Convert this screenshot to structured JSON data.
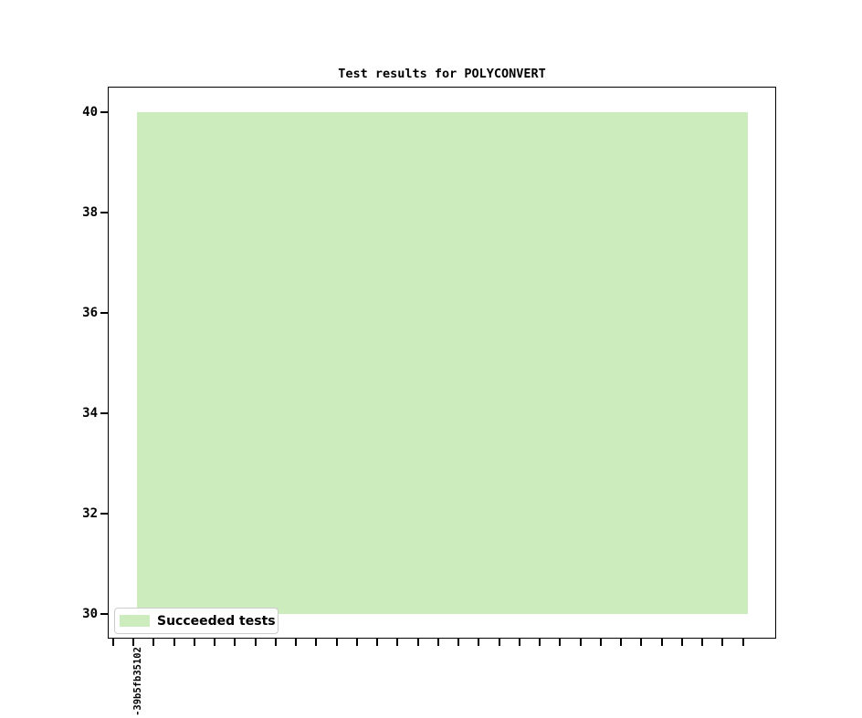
{
  "figure": {
    "title": "Test results for POLYCONVERT"
  },
  "chart_data": {
    "type": "bar",
    "title": "Test results for POLYCONVERT",
    "xlabel": "",
    "ylabel": "",
    "categories": [
      "-39b5fb35102"
    ],
    "x_tick_count": 32,
    "x_tick_labels_visible": [
      "-39b5fb35102"
    ],
    "y_ticks": [
      30,
      32,
      34,
      36,
      38,
      40
    ],
    "ylim": [
      29.5,
      40.5
    ],
    "grid": false,
    "series": [
      {
        "name": "Succeeded tests",
        "color": "#cdecbd",
        "bar_from": 30,
        "bar_to": 40,
        "value": 40
      }
    ],
    "legend": {
      "position": "lower left",
      "entries": [
        "Succeeded tests"
      ]
    }
  },
  "colors": {
    "background": "#ffffff",
    "bar_fill": "#cdecbd",
    "axis": "#000000",
    "legend_border": "#cccccc",
    "text": "#000000"
  }
}
